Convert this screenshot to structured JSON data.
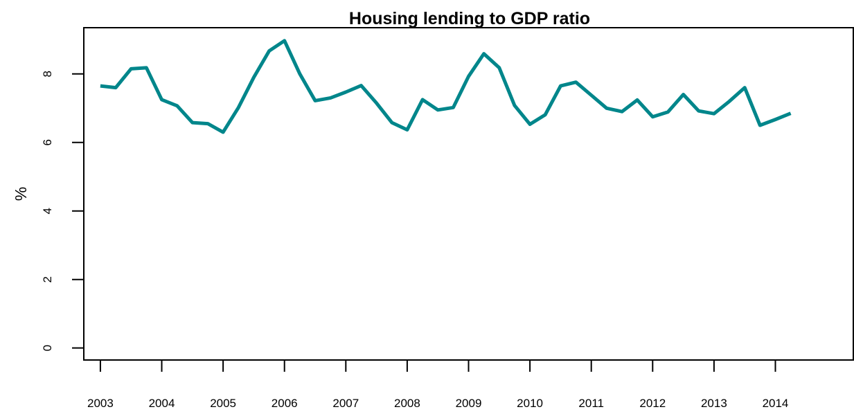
{
  "chart_data": {
    "type": "line",
    "title": "Housing lending to GDP ratio",
    "xlabel": "",
    "ylabel": "%",
    "xlim": [
      2002.73,
      2015.27
    ],
    "ylim": [
      -0.35,
      9.35
    ],
    "x_ticks": [
      2003,
      2004,
      2005,
      2006,
      2007,
      2008,
      2009,
      2010,
      2011,
      2012,
      2013,
      2014
    ],
    "y_ticks": [
      0,
      2,
      4,
      6,
      8
    ],
    "grid": false,
    "series_color": "#00868b",
    "series": [
      {
        "x": [
          2003.0,
          2003.25,
          2003.5,
          2003.75,
          2004.0,
          2004.25,
          2004.5,
          2004.75,
          2005.0,
          2005.25,
          2005.5,
          2005.75,
          2006.0,
          2006.25,
          2006.5,
          2006.75,
          2007.0,
          2007.25,
          2007.5,
          2007.75,
          2008.0,
          2008.25,
          2008.5,
          2008.75,
          2009.0,
          2009.25,
          2009.5,
          2009.75,
          2010.0,
          2010.25,
          2010.5,
          2010.75,
          2011.0,
          2011.25,
          2011.5,
          2011.75,
          2012.0,
          2012.25,
          2012.5,
          2012.75,
          2013.0,
          2013.25,
          2013.5,
          2013.75,
          2014.0,
          2014.25
        ],
        "values": [
          7.65,
          7.6,
          8.15,
          8.18,
          7.25,
          7.07,
          6.58,
          6.55,
          6.3,
          7.02,
          7.9,
          8.67,
          8.97,
          8.0,
          7.22,
          7.3,
          7.47,
          7.66,
          7.15,
          6.58,
          6.37,
          7.25,
          6.95,
          7.02,
          7.93,
          8.59,
          8.18,
          7.08,
          6.53,
          6.81,
          7.65,
          7.76,
          7.38,
          7.0,
          6.9,
          7.24,
          6.75,
          6.89,
          7.4,
          6.92,
          6.84,
          7.2,
          7.6,
          6.5,
          6.67,
          6.85
        ]
      }
    ]
  }
}
